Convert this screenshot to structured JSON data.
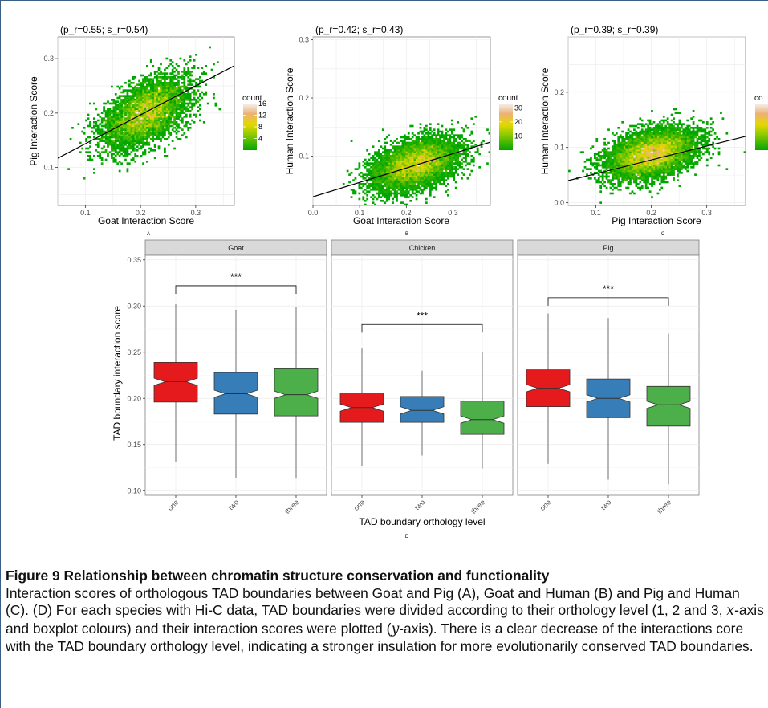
{
  "chart_data": [
    {
      "type": "heatmap",
      "panel": "A",
      "title": "(p_r=0.55; s_r=0.54)",
      "xlabel": "Goat Interaction Score",
      "ylabel": "Pig Interaction Score",
      "xticks": [
        "0.1",
        "0.2",
        "0.3"
      ],
      "yticks": [
        "0.1",
        "0.2",
        "0.3"
      ],
      "xlim": [
        0.05,
        0.37
      ],
      "ylim": [
        0.03,
        0.34
      ],
      "legend_title": "count",
      "legend_ticks": [
        "4",
        "8",
        "12",
        "16"
      ],
      "legend_max": 16,
      "cloud": {
        "cx": 0.21,
        "cy": 0.2,
        "sx": 0.04,
        "sy": 0.033,
        "rho": 0.55
      },
      "fit_line": {
        "x": [
          0.05,
          0.37
        ],
        "y": [
          0.117,
          0.287
        ]
      }
    },
    {
      "type": "heatmap",
      "panel": "B",
      "title": "(p_r=0.42; s_r=0.43)",
      "xlabel": "Goat Interaction Score",
      "ylabel": "Human Interaction Score",
      "xticks": [
        "0.0",
        "0.1",
        "0.2",
        "0.3"
      ],
      "yticks": [
        "0.1",
        "0.2",
        "0.3"
      ],
      "xlim": [
        0.0,
        0.38
      ],
      "ylim": [
        0.015,
        0.305
      ],
      "legend_title": "count",
      "legend_ticks": [
        "10",
        "20",
        "30"
      ],
      "legend_max": 33,
      "cloud": {
        "cx": 0.22,
        "cy": 0.086,
        "sx": 0.045,
        "sy": 0.022,
        "rho": 0.42
      },
      "fit_line": {
        "x": [
          0.0,
          0.38
        ],
        "y": [
          0.03,
          0.124
        ]
      }
    },
    {
      "type": "heatmap",
      "panel": "C",
      "title": "(p_r=0.39; s_r=0.39)",
      "xlabel": "Pig Interaction Score",
      "ylabel": "Human Interaction Score",
      "xticks": [
        "0.1",
        "0.2",
        "0.3"
      ],
      "yticks": [
        "0.0",
        "0.1",
        "0.2"
      ],
      "xlim": [
        0.05,
        0.37
      ],
      "ylim": [
        -0.005,
        0.3
      ],
      "legend_title": "co",
      "legend_ticks": [],
      "legend_max": 40,
      "cloud": {
        "cx": 0.2,
        "cy": 0.088,
        "sx": 0.04,
        "sy": 0.022,
        "rho": 0.39
      },
      "fit_line": {
        "x": [
          0.05,
          0.37
        ],
        "y": [
          0.04,
          0.12
        ]
      }
    },
    {
      "type": "box",
      "panel": "D",
      "xlabel": "TAD boundary orthology level",
      "ylabel": "TAD boundary interaction score",
      "ylim": [
        0.095,
        0.355
      ],
      "yticks": [
        0.1,
        0.15,
        0.2,
        0.25,
        0.3,
        0.35
      ],
      "ytick_labels": [
        "0.10",
        "0.15",
        "0.20",
        "0.25",
        "0.30",
        "0.35"
      ],
      "categories": [
        "one",
        "two",
        "three"
      ],
      "colors": [
        "#e41a1c",
        "#377eb8",
        "#4daf4a"
      ],
      "facets": [
        {
          "name": "Goat",
          "sig": "***",
          "bracket_y": 0.322,
          "boxes": [
            {
              "min": 0.131,
              "q1": 0.196,
              "median": 0.218,
              "q3": 0.239,
              "max": 0.302
            },
            {
              "min": 0.114,
              "q1": 0.183,
              "median": 0.205,
              "q3": 0.228,
              "max": 0.296
            },
            {
              "min": 0.113,
              "q1": 0.181,
              "median": 0.204,
              "q3": 0.232,
              "max": 0.299
            }
          ]
        },
        {
          "name": "Chicken",
          "sig": "***",
          "bracket_y": 0.28,
          "boxes": [
            {
              "min": 0.127,
              "q1": 0.174,
              "median": 0.19,
              "q3": 0.206,
              "max": 0.254
            },
            {
              "min": 0.138,
              "q1": 0.174,
              "median": 0.187,
              "q3": 0.202,
              "max": 0.23
            },
            {
              "min": 0.124,
              "q1": 0.161,
              "median": 0.177,
              "q3": 0.197,
              "max": 0.25
            }
          ]
        },
        {
          "name": "Pig",
          "sig": "***",
          "bracket_y": 0.309,
          "boxes": [
            {
              "min": 0.129,
              "q1": 0.191,
              "median": 0.211,
              "q3": 0.231,
              "max": 0.292
            },
            {
              "min": 0.112,
              "q1": 0.179,
              "median": 0.2,
              "q3": 0.221,
              "max": 0.287
            },
            {
              "min": 0.107,
              "q1": 0.17,
              "median": 0.193,
              "q3": 0.213,
              "max": 0.27
            }
          ]
        }
      ]
    }
  ],
  "panel_labels": [
    "A",
    "B",
    "C",
    "D"
  ],
  "caption": {
    "title": "Figure 9  Relationship between chromatin structure conservation and functionality",
    "body_1": "Interaction scores of orthologous TAD boundaries between Goat and Pig (A), Goat and Human (B) and Pig and Human (C). (D) For each species with Hi-C data, TAD boundaries were divided according to their orthology level (1, 2 and 3, ",
    "math_x": "x",
    "body_2": "-axis and boxplot colours) and their interaction scores were plotted (",
    "math_y": "y",
    "body_3": "-axis). There is a clear decrease of the interactions core with the TAD boundary orthology level, indicating a stronger insulation for more evolutionarily conserved TAD boundaries."
  }
}
